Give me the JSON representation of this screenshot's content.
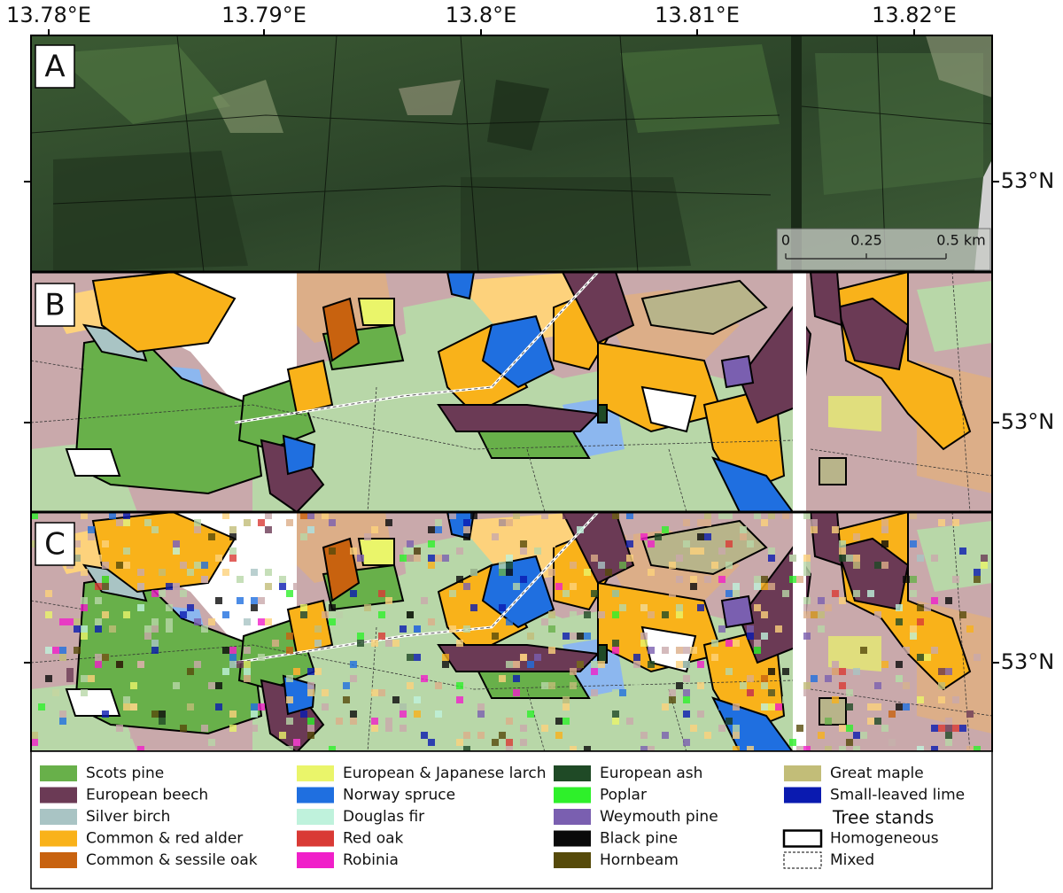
{
  "axes": {
    "top_labels": [
      "13.78°E",
      "13.79°E",
      "13.8°E",
      "13.81°E",
      "13.82°E"
    ],
    "right_labels": [
      "53°N",
      "53°N",
      "53°N"
    ]
  },
  "panels": [
    "A",
    "B",
    "C"
  ],
  "scale_bar": {
    "labels": [
      "0",
      "0.25",
      "0.5 km"
    ]
  },
  "legend": {
    "items": [
      {
        "name": "Scots pine",
        "color": "#68b04a"
      },
      {
        "name": "European beech",
        "color": "#6b3a55"
      },
      {
        "name": "Silver birch",
        "color": "#a9c4c4"
      },
      {
        "name": "Common & red alder",
        "color": "#f9b21a"
      },
      {
        "name": "Common & sessile oak",
        "color": "#c8620f"
      },
      {
        "name": "European & Japanese larch",
        "color": "#eaf56a"
      },
      {
        "name": "Norway spruce",
        "color": "#1f6fe0"
      },
      {
        "name": "Douglas fir",
        "color": "#bff2dc"
      },
      {
        "name": "Red oak",
        "color": "#d93a35"
      },
      {
        "name": "Robinia",
        "color": "#f01fc9"
      },
      {
        "name": "European ash",
        "color": "#1f4a26"
      },
      {
        "name": "Poplar",
        "color": "#2ef02a"
      },
      {
        "name": "Weymouth pine",
        "color": "#7a5fb0"
      },
      {
        "name": "Black pine",
        "color": "#0a0a0a"
      },
      {
        "name": "Hornbeam",
        "color": "#564a0a"
      },
      {
        "name": "Great maple",
        "color": "#c2bd78"
      },
      {
        "name": "Small-leaved lime",
        "color": "#0a1ab0"
      }
    ],
    "heading": "Tree stands",
    "stands": [
      "Homogeneous",
      "Mixed"
    ]
  }
}
